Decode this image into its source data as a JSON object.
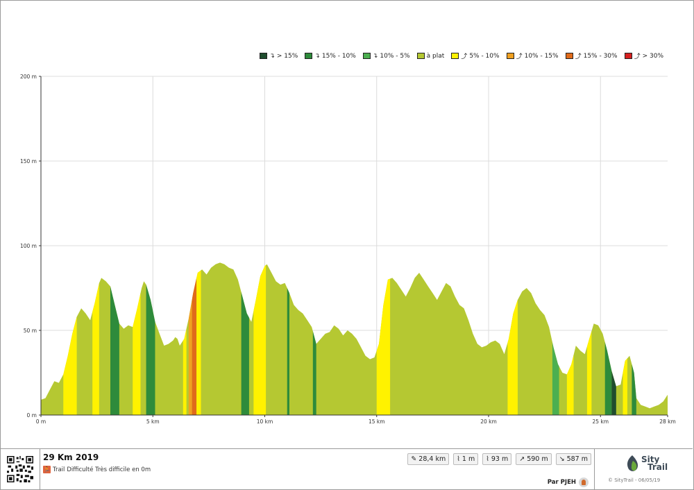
{
  "chart_data": {
    "type": "area",
    "xlabel": "",
    "ylabel": "",
    "xlim": [
      0,
      28
    ],
    "ylim": [
      0,
      200
    ],
    "x_ticks": [
      {
        "v": 0,
        "label": "0 m"
      },
      {
        "v": 5,
        "label": "5 km"
      },
      {
        "v": 10,
        "label": "10 km"
      },
      {
        "v": 15,
        "label": "15 km"
      },
      {
        "v": 20,
        "label": "20 km"
      },
      {
        "v": 25,
        "label": "25 km"
      },
      {
        "v": 28,
        "label": "28 km"
      }
    ],
    "y_ticks": [
      {
        "v": 0,
        "label": "0 m"
      },
      {
        "v": 50,
        "label": "50 m"
      },
      {
        "v": 100,
        "label": "100 m"
      },
      {
        "v": 150,
        "label": "150 m"
      },
      {
        "v": 200,
        "label": "200 m"
      }
    ],
    "grid": true,
    "legend_position": "top-right",
    "legend": [
      {
        "arrow": "↴",
        "label": "> 15%",
        "color": "#1f4d2e"
      },
      {
        "arrow": "↴",
        "label": "15% - 10%",
        "color": "#2e8b3b"
      },
      {
        "arrow": "↴",
        "label": "10% - 5%",
        "color": "#4caf50"
      },
      {
        "arrow": "",
        "label": "à plat",
        "color": "#b5c832"
      },
      {
        "arrow": "⤴",
        "label": "5% - 10%",
        "color": "#fff200"
      },
      {
        "arrow": "⤴",
        "label": "10% - 15%",
        "color": "#f0a020"
      },
      {
        "arrow": "⤴",
        "label": "15% - 30%",
        "color": "#e06a1a"
      },
      {
        "arrow": "⤴",
        "label": "> 30%",
        "color": "#d62020"
      }
    ],
    "base_color": "#b5c832",
    "profile": [
      [
        0,
        9
      ],
      [
        0.2,
        10
      ],
      [
        0.4,
        15
      ],
      [
        0.6,
        20
      ],
      [
        0.8,
        19
      ],
      [
        1.0,
        24
      ],
      [
        1.2,
        35
      ],
      [
        1.4,
        48
      ],
      [
        1.6,
        58
      ],
      [
        1.8,
        63
      ],
      [
        2.0,
        60
      ],
      [
        2.2,
        56
      ],
      [
        2.4,
        66
      ],
      [
        2.6,
        78
      ],
      [
        2.7,
        81
      ],
      [
        2.9,
        79
      ],
      [
        3.1,
        76
      ],
      [
        3.3,
        65
      ],
      [
        3.5,
        54
      ],
      [
        3.7,
        51
      ],
      [
        3.9,
        53
      ],
      [
        4.1,
        52
      ],
      [
        4.3,
        63
      ],
      [
        4.5,
        75
      ],
      [
        4.6,
        79
      ],
      [
        4.7,
        77
      ],
      [
        4.9,
        68
      ],
      [
        5.1,
        55
      ],
      [
        5.3,
        48
      ],
      [
        5.5,
        41
      ],
      [
        5.7,
        42
      ],
      [
        5.9,
        44
      ],
      [
        6.0,
        46
      ],
      [
        6.1,
        45
      ],
      [
        6.2,
        41
      ],
      [
        6.4,
        45
      ],
      [
        6.6,
        57
      ],
      [
        6.8,
        72
      ],
      [
        7.0,
        84
      ],
      [
        7.2,
        86
      ],
      [
        7.4,
        83
      ],
      [
        7.6,
        87
      ],
      [
        7.8,
        89
      ],
      [
        8.0,
        90
      ],
      [
        8.2,
        89
      ],
      [
        8.4,
        87
      ],
      [
        8.6,
        86
      ],
      [
        8.8,
        80
      ],
      [
        9.0,
        70
      ],
      [
        9.2,
        60
      ],
      [
        9.4,
        55
      ],
      [
        9.6,
        68
      ],
      [
        9.8,
        82
      ],
      [
        10.0,
        88
      ],
      [
        10.1,
        89
      ],
      [
        10.3,
        84
      ],
      [
        10.5,
        79
      ],
      [
        10.7,
        77
      ],
      [
        10.9,
        78
      ],
      [
        11.1,
        72
      ],
      [
        11.3,
        65
      ],
      [
        11.5,
        62
      ],
      [
        11.7,
        60
      ],
      [
        11.9,
        56
      ],
      [
        12.1,
        52
      ],
      [
        12.3,
        42
      ],
      [
        12.5,
        45
      ],
      [
        12.7,
        48
      ],
      [
        12.9,
        49
      ],
      [
        13.1,
        53
      ],
      [
        13.3,
        51
      ],
      [
        13.5,
        47
      ],
      [
        13.7,
        50
      ],
      [
        13.9,
        48
      ],
      [
        14.1,
        45
      ],
      [
        14.3,
        40
      ],
      [
        14.5,
        35
      ],
      [
        14.7,
        33
      ],
      [
        14.9,
        34
      ],
      [
        15.1,
        42
      ],
      [
        15.3,
        65
      ],
      [
        15.5,
        80
      ],
      [
        15.7,
        81
      ],
      [
        15.9,
        78
      ],
      [
        16.1,
        74
      ],
      [
        16.3,
        70
      ],
      [
        16.5,
        75
      ],
      [
        16.7,
        81
      ],
      [
        16.9,
        84
      ],
      [
        17.1,
        80
      ],
      [
        17.3,
        76
      ],
      [
        17.5,
        72
      ],
      [
        17.7,
        68
      ],
      [
        17.9,
        73
      ],
      [
        18.1,
        78
      ],
      [
        18.3,
        76
      ],
      [
        18.5,
        70
      ],
      [
        18.7,
        65
      ],
      [
        18.9,
        63
      ],
      [
        19.1,
        56
      ],
      [
        19.3,
        48
      ],
      [
        19.5,
        42
      ],
      [
        19.7,
        40
      ],
      [
        19.9,
        41
      ],
      [
        20.1,
        43
      ],
      [
        20.3,
        44
      ],
      [
        20.5,
        42
      ],
      [
        20.7,
        36
      ],
      [
        20.9,
        45
      ],
      [
        21.1,
        60
      ],
      [
        21.3,
        68
      ],
      [
        21.5,
        73
      ],
      [
        21.7,
        75
      ],
      [
        21.9,
        72
      ],
      [
        22.1,
        66
      ],
      [
        22.3,
        62
      ],
      [
        22.5,
        59
      ],
      [
        22.7,
        52
      ],
      [
        22.9,
        40
      ],
      [
        23.1,
        30
      ],
      [
        23.3,
        25
      ],
      [
        23.5,
        24
      ],
      [
        23.7,
        30
      ],
      [
        23.9,
        41
      ],
      [
        24.1,
        38
      ],
      [
        24.3,
        36
      ],
      [
        24.5,
        45
      ],
      [
        24.7,
        54
      ],
      [
        24.9,
        53
      ],
      [
        25.1,
        48
      ],
      [
        25.3,
        38
      ],
      [
        25.5,
        26
      ],
      [
        25.7,
        17
      ],
      [
        25.9,
        18
      ],
      [
        26.1,
        32
      ],
      [
        26.3,
        35
      ],
      [
        26.5,
        25
      ],
      [
        26.6,
        10
      ],
      [
        26.8,
        6
      ],
      [
        27.0,
        5
      ],
      [
        27.2,
        4
      ],
      [
        27.4,
        5
      ],
      [
        27.6,
        6
      ],
      [
        27.8,
        8
      ],
      [
        28.0,
        12
      ]
    ],
    "slope_bands": [
      {
        "from": 1.0,
        "to": 1.6,
        "color": "#fff200"
      },
      {
        "from": 2.3,
        "to": 2.6,
        "color": "#fff200"
      },
      {
        "from": 3.1,
        "to": 3.5,
        "color": "#2e8b3b"
      },
      {
        "from": 4.1,
        "to": 4.45,
        "color": "#fff200"
      },
      {
        "from": 4.7,
        "to": 5.1,
        "color": "#2e8b3b"
      },
      {
        "from": 6.35,
        "to": 6.5,
        "color": "#fff200"
      },
      {
        "from": 6.6,
        "to": 6.75,
        "color": "#f0a020"
      },
      {
        "from": 6.75,
        "to": 6.95,
        "color": "#e06a1a"
      },
      {
        "from": 6.95,
        "to": 7.15,
        "color": "#fff200"
      },
      {
        "from": 8.95,
        "to": 9.3,
        "color": "#2e8b3b"
      },
      {
        "from": 9.5,
        "to": 10.05,
        "color": "#fff200"
      },
      {
        "from": 11.0,
        "to": 11.1,
        "color": "#2e8b3b"
      },
      {
        "from": 12.15,
        "to": 12.3,
        "color": "#2e8b3b"
      },
      {
        "from": 15.0,
        "to": 15.6,
        "color": "#fff200"
      },
      {
        "from": 20.85,
        "to": 21.3,
        "color": "#fff200"
      },
      {
        "from": 22.85,
        "to": 23.15,
        "color": "#4caf50"
      },
      {
        "from": 23.5,
        "to": 23.8,
        "color": "#fff200"
      },
      {
        "from": 24.4,
        "to": 24.6,
        "color": "#fff200"
      },
      {
        "from": 25.2,
        "to": 25.5,
        "color": "#2e8b3b"
      },
      {
        "from": 25.5,
        "to": 25.7,
        "color": "#1f4d2e"
      },
      {
        "from": 26.0,
        "to": 26.2,
        "color": "#fff200"
      },
      {
        "from": 26.4,
        "to": 26.6,
        "color": "#2e8b3b"
      }
    ]
  },
  "footer": {
    "title": "29 Km 2019",
    "activity": "Trail",
    "difficulty": "Difficulté Très difficile en 0m",
    "stats": [
      {
        "icon": "distance-icon",
        "glyph": "✎",
        "value": "28,4 km"
      },
      {
        "icon": "min-altitude-icon",
        "glyph": "⌇",
        "value": "1 m"
      },
      {
        "icon": "max-altitude-icon",
        "glyph": "⌇",
        "value": "93 m"
      },
      {
        "icon": "ascent-icon",
        "glyph": "↗",
        "value": "590 m"
      },
      {
        "icon": "descent-icon",
        "glyph": "↘",
        "value": "587 m"
      }
    ],
    "author": "Par PJEH",
    "brand_line1": "Sity",
    "brand_line2": "Trail",
    "copyright": "© SityTrail - 06/05/19"
  },
  "colors": {
    "grid": "#dcdcdc",
    "axis": "#333333",
    "brand": "#3e4b57",
    "leaf": "#6aa93b"
  }
}
